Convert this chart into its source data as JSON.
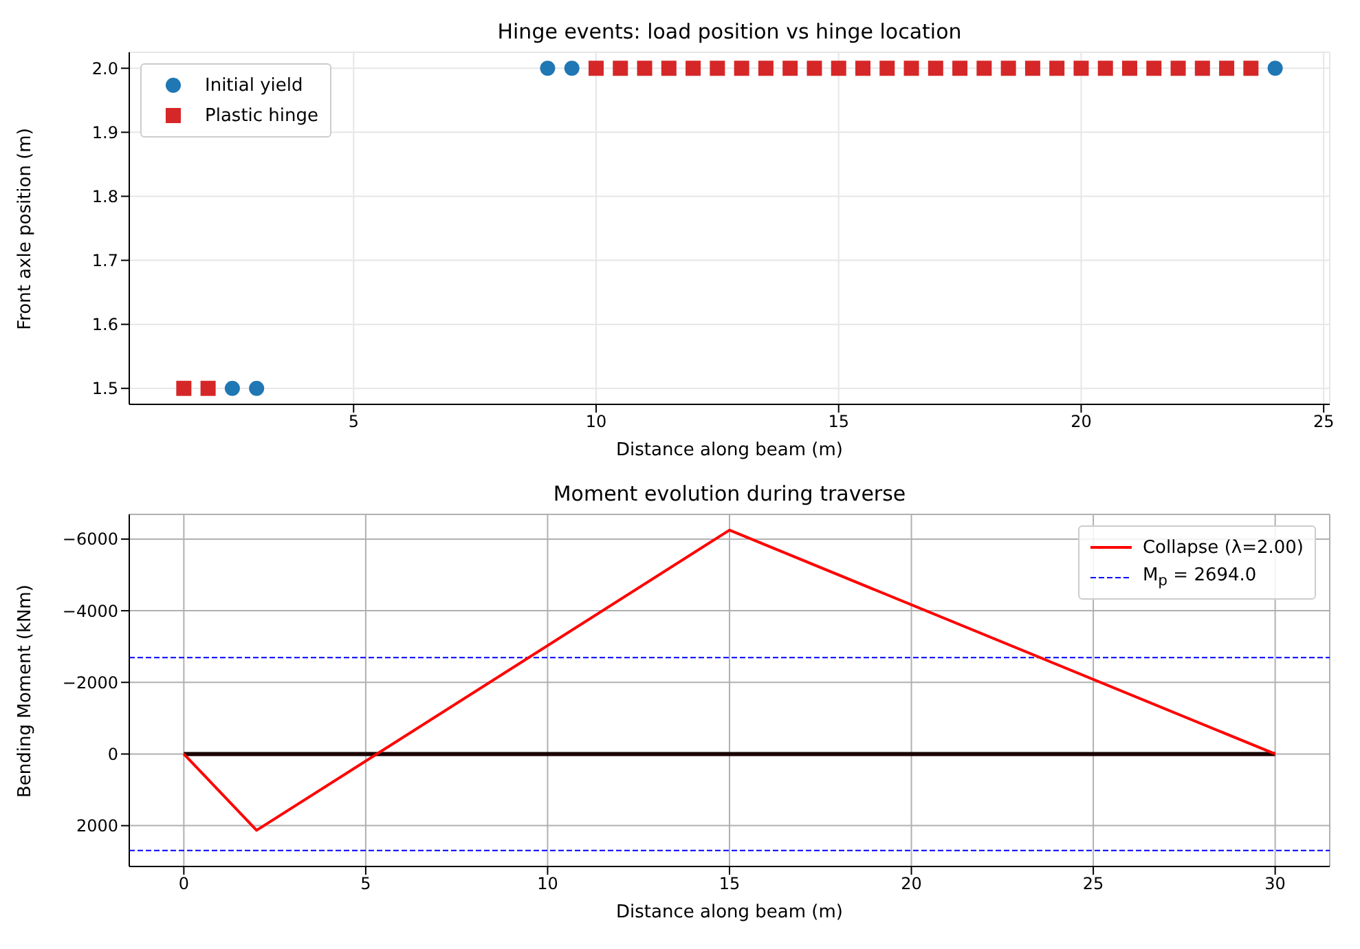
{
  "chart_data": [
    {
      "type": "scatter",
      "title": "Hinge events: load position vs hinge location",
      "xlabel": "Distance along beam (m)",
      "ylabel": "Front axle position (m)",
      "xlim": [
        0.375,
        25.125
      ],
      "xticks": [
        5,
        10,
        15,
        20,
        25
      ],
      "ylim": [
        1.475,
        2.025
      ],
      "yticks": [
        1.5,
        1.6,
        1.7,
        1.8,
        1.9,
        {
          "value": 2,
          "label": "2.0"
        }
      ],
      "grid": true,
      "legend": "top left",
      "series": [
        {
          "name": "Initial yield",
          "color": "#1f77b4",
          "marker": "circle",
          "x": [
            2.5,
            3.0,
            9.0,
            9.5,
            24.0
          ],
          "values": [
            1.5,
            1.5,
            2.0,
            2.0,
            2.0
          ]
        },
        {
          "name": "Plastic hinge",
          "color": "#d62728",
          "marker": "square",
          "x": [
            1.5,
            2.0,
            10,
            10.5,
            11,
            11.5,
            12,
            12.5,
            13,
            13.5,
            14,
            14.5,
            15,
            15.5,
            16,
            16.5,
            17,
            17.5,
            18,
            18.5,
            19,
            19.5,
            20,
            20.5,
            21,
            21.5,
            22,
            22.5,
            23,
            23.5
          ],
          "values": [
            1.5,
            1.5,
            2,
            2,
            2,
            2,
            2,
            2,
            2,
            2,
            2,
            2,
            2,
            2,
            2,
            2,
            2,
            2,
            2,
            2,
            2,
            2,
            2,
            2,
            2,
            2,
            2,
            2,
            2,
            2
          ]
        }
      ]
    },
    {
      "type": "line",
      "title": "Moment evolution during traverse",
      "xlabel": "Distance along beam (m)",
      "ylabel": "Bending Moment (kNm)",
      "xlim": [
        -1.5,
        31.5
      ],
      "xticks": [
        0,
        5,
        10,
        15,
        20,
        25,
        30
      ],
      "ylim": [
        3140,
        -6690
      ],
      "yticks": [
        -6000,
        -4000,
        -2000,
        0,
        2000
      ],
      "grid": true,
      "legend": "top right",
      "marker": "none",
      "series": [
        {
          "color": "#1a0000",
          "x": [
            0,
            30
          ],
          "values": [
            0,
            0
          ]
        },
        {
          "name": "Collapse (λ=2.00)",
          "color": "#ff0000",
          "x": [
            0,
            2,
            15,
            30
          ],
          "values": [
            0,
            2130,
            -6250,
            0
          ]
        }
      ],
      "ref_lines": [
        {
          "axis": "y",
          "value": 2694,
          "label": "M$_{p}$ = 2694.0",
          "color": "#0000ff",
          "line_style": "dashed"
        },
        {
          "axis": "y",
          "value": -2694,
          "color": "#0000ff",
          "line_style": "dashed"
        }
      ]
    }
  ]
}
